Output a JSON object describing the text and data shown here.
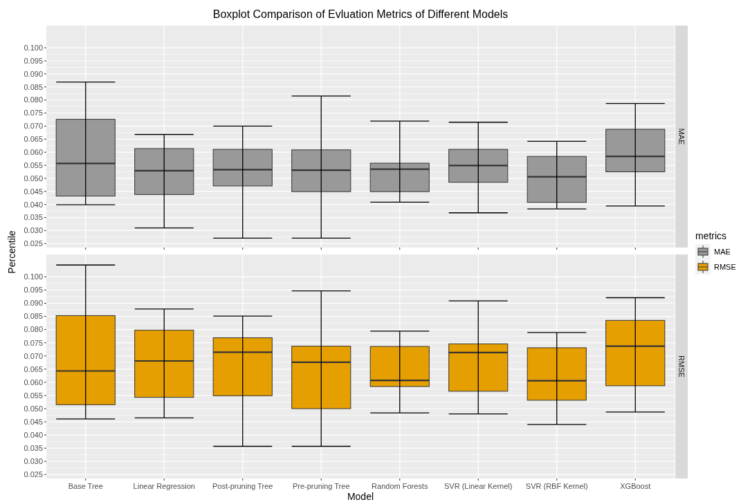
{
  "chart_data": [
    {
      "type": "box",
      "title": "Boxplot Comparison of Evluation Metrics of Different Models",
      "categories": [
        null,
        null,
        null,
        null,
        null,
        null,
        null,
        null
      ],
      "ylim": [
        0.0235,
        0.1085
      ],
      "yticks": [
        {
          "value": 0.025,
          "label": "0.025"
        },
        {
          "value": 0.03,
          "label": "0.030"
        },
        {
          "value": 0.035,
          "label": "0.035"
        },
        {
          "value": 0.04,
          "label": "0.040"
        },
        {
          "value": 0.045,
          "label": "0.045"
        },
        {
          "value": 0.05,
          "label": "0.050"
        },
        {
          "value": 0.055,
          "label": "0.055"
        },
        {
          "value": 0.06,
          "label": "0.060"
        },
        {
          "value": 0.065,
          "label": "0.065"
        },
        {
          "value": 0.07,
          "label": "0.070"
        },
        {
          "value": 0.075,
          "label": "0.075"
        },
        {
          "value": 0.08,
          "label": "0.080"
        },
        {
          "value": 0.085,
          "label": "0.085"
        },
        {
          "value": 0.09,
          "label": "0.090"
        },
        {
          "value": 0.095,
          "label": "0.095"
        },
        {
          "value": 0.1,
          "label": "0.100"
        }
      ],
      "grid": true,
      "tick_labels": "y",
      "legend": "right",
      "legend_title": "metrics",
      "series": [
        {
          "name": "MAE",
          "color": "#999999",
          "boxes": [
            {
              "low": 0.0399,
              "q1": 0.0432,
              "median": 0.0557,
              "q3": 0.0726,
              "high": 0.0869
            },
            {
              "low": 0.031,
              "q1": 0.0438,
              "median": 0.0529,
              "q3": 0.0614,
              "high": 0.0668
            },
            {
              "low": 0.0271,
              "q1": 0.0471,
              "median": 0.0533,
              "q3": 0.0611,
              "high": 0.07
            },
            {
              "low": 0.0271,
              "q1": 0.0449,
              "median": 0.0531,
              "q3": 0.0609,
              "high": 0.0815
            },
            {
              "low": 0.0409,
              "q1": 0.0449,
              "median": 0.0535,
              "q3": 0.0558,
              "high": 0.0719
            },
            {
              "low": 0.0368,
              "q1": 0.0485,
              "median": 0.0549,
              "q3": 0.0611,
              "high": 0.0715
            },
            {
              "low": 0.0383,
              "q1": 0.0408,
              "median": 0.0506,
              "q3": 0.0584,
              "high": 0.0642
            },
            {
              "low": 0.0394,
              "q1": 0.0525,
              "median": 0.0584,
              "q3": 0.0688,
              "high": 0.0787
            }
          ]
        }
      ]
    },
    {
      "type": "box",
      "xlabel": "Model",
      "ylabel": "Percentile",
      "categories": [
        "Base Tree",
        "Linear Regression",
        "Post-pruning Tree",
        "Pre-pruning Tree",
        "Random Forests",
        "SVR (Linear Kernel)",
        "SVR (RBF Kernel)",
        "XGBoost"
      ],
      "ylim": [
        0.0235,
        0.1085
      ],
      "yticks": [
        {
          "value": 0.025,
          "label": "0.025"
        },
        {
          "value": 0.03,
          "label": "0.030"
        },
        {
          "value": 0.035,
          "label": "0.035"
        },
        {
          "value": 0.04,
          "label": "0.040"
        },
        {
          "value": 0.045,
          "label": "0.045"
        },
        {
          "value": 0.05,
          "label": "0.050"
        },
        {
          "value": 0.055,
          "label": "0.055"
        },
        {
          "value": 0.06,
          "label": "0.060"
        },
        {
          "value": 0.065,
          "label": "0.065"
        },
        {
          "value": 0.07,
          "label": "0.070"
        },
        {
          "value": 0.075,
          "label": "0.075"
        },
        {
          "value": 0.08,
          "label": "0.080"
        },
        {
          "value": 0.085,
          "label": "0.085"
        },
        {
          "value": 0.09,
          "label": "0.090"
        },
        {
          "value": 0.095,
          "label": "0.095"
        },
        {
          "value": 0.1,
          "label": "0.100"
        }
      ],
      "grid": true,
      "legend": "right",
      "series": [
        {
          "name": "RMSE",
          "color": "#e69f00",
          "boxes": [
            {
              "low": 0.0461,
              "q1": 0.0515,
              "median": 0.0643,
              "q3": 0.0853,
              "high": 0.1045
            },
            {
              "low": 0.0465,
              "q1": 0.0543,
              "median": 0.0681,
              "q3": 0.0798,
              "high": 0.0878
            },
            {
              "low": 0.0357,
              "q1": 0.0549,
              "median": 0.0714,
              "q3": 0.0769,
              "high": 0.0851
            },
            {
              "low": 0.0357,
              "q1": 0.05,
              "median": 0.0676,
              "q3": 0.0737,
              "high": 0.0947
            },
            {
              "low": 0.0484,
              "q1": 0.0584,
              "median": 0.0607,
              "q3": 0.0736,
              "high": 0.0794
            },
            {
              "low": 0.048,
              "q1": 0.0566,
              "median": 0.0713,
              "q3": 0.0746,
              "high": 0.0909
            },
            {
              "low": 0.044,
              "q1": 0.0532,
              "median": 0.0606,
              "q3": 0.0731,
              "high": 0.0789
            },
            {
              "low": 0.0487,
              "q1": 0.0587,
              "median": 0.0737,
              "q3": 0.0835,
              "high": 0.0921
            }
          ]
        }
      ]
    }
  ]
}
